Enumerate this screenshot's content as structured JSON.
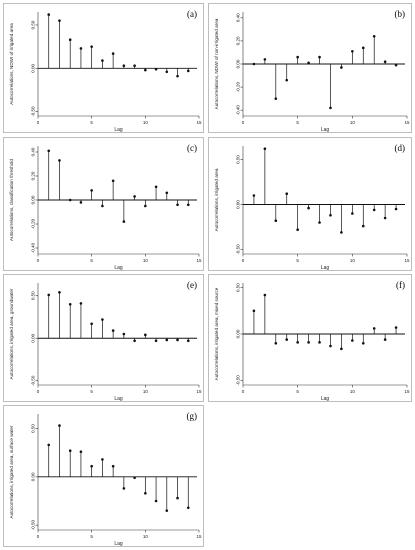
{
  "figure": {
    "panels": [
      {
        "panel_label": "(a)"
      },
      {
        "panel_label": "(b)"
      },
      {
        "panel_label": "(c)"
      },
      {
        "panel_label": "(d)"
      },
      {
        "panel_label": "(e)"
      },
      {
        "panel_label": "(f)"
      },
      {
        "panel_label": "(g)"
      }
    ]
  },
  "chart_data": [
    {
      "type": "stem",
      "panel": "(a)",
      "xlabel": "Lag",
      "ylabel": "Autocorrelations, NDWI of irrigated area",
      "xlim": [
        0,
        15
      ],
      "x_ticks": [
        0,
        5,
        10,
        15
      ],
      "ylim": [
        -0.55,
        0.65
      ],
      "y_ticks": [
        -0.5,
        0.0,
        0.5
      ],
      "y_tick_labels": [
        "-0.50",
        "0.00",
        "0.50"
      ],
      "x": [
        1,
        2,
        3,
        4,
        5,
        6,
        7,
        8,
        9,
        10,
        11,
        12,
        13,
        14
      ],
      "values": [
        0.62,
        0.55,
        0.33,
        0.23,
        0.25,
        0.09,
        0.17,
        0.03,
        0.03,
        -0.02,
        -0.01,
        -0.04,
        -0.09,
        -0.03
      ]
    },
    {
      "type": "stem",
      "panel": "(b)",
      "xlabel": "Lag",
      "ylabel": "Autocorrelations, NDWI of non-irrigated area",
      "xlim": [
        0,
        15
      ],
      "x_ticks": [
        0,
        5,
        10,
        15
      ],
      "ylim": [
        -0.45,
        0.45
      ],
      "y_ticks": [
        -0.4,
        -0.2,
        0.0,
        0.2,
        0.4
      ],
      "y_tick_labels": [
        "-0.40",
        "-0.20",
        "0.00",
        "0.20",
        "0.40"
      ],
      "x": [
        1,
        2,
        3,
        4,
        5,
        6,
        7,
        8,
        9,
        10,
        11,
        12,
        13,
        14
      ],
      "values": [
        0.0,
        0.04,
        -0.3,
        -0.14,
        0.06,
        0.01,
        0.06,
        -0.38,
        -0.03,
        0.11,
        0.14,
        0.24,
        0.02,
        -0.01
      ]
    },
    {
      "type": "stem",
      "panel": "(c)",
      "xlabel": "Lag",
      "ylabel": "Autocorrelations, classification threshold",
      "xlim": [
        0,
        15
      ],
      "x_ticks": [
        0,
        5,
        10,
        15
      ],
      "ylim": [
        -0.45,
        0.45
      ],
      "y_ticks": [
        -0.4,
        -0.2,
        0.0,
        0.2,
        0.4
      ],
      "y_tick_labels": [
        "-0.40",
        "-0.20",
        "0.00",
        "0.20",
        "0.40"
      ],
      "x": [
        1,
        2,
        3,
        4,
        5,
        6,
        7,
        8,
        9,
        10,
        11,
        12,
        13,
        14
      ],
      "values": [
        0.41,
        0.33,
        0.0,
        -0.02,
        0.08,
        -0.05,
        0.16,
        -0.18,
        0.03,
        -0.05,
        0.11,
        0.06,
        -0.04,
        -0.04
      ]
    },
    {
      "type": "stem",
      "panel": "(d)",
      "xlabel": "Lag",
      "ylabel": "Autocorrelations, irrigated area",
      "xlim": [
        0,
        15
      ],
      "x_ticks": [
        0,
        5,
        10,
        15
      ],
      "ylim": [
        -0.55,
        0.65
      ],
      "y_ticks": [
        -0.5,
        0.0,
        0.5
      ],
      "y_tick_labels": [
        "-0.50",
        "0.00",
        "0.50"
      ],
      "x": [
        1,
        2,
        3,
        4,
        5,
        6,
        7,
        8,
        9,
        10,
        11,
        12,
        13,
        14
      ],
      "values": [
        0.1,
        0.62,
        -0.18,
        0.12,
        -0.28,
        -0.04,
        -0.2,
        -0.12,
        -0.31,
        -0.1,
        -0.24,
        -0.06,
        -0.15,
        -0.05
      ]
    },
    {
      "type": "stem",
      "panel": "(e)",
      "xlabel": "Lag",
      "ylabel": "Autocorrelations, irrigated area, groundwater",
      "xlim": [
        0,
        15
      ],
      "x_ticks": [
        0,
        5,
        10,
        15
      ],
      "ylim": [
        -0.55,
        0.65
      ],
      "y_ticks": [
        -0.5,
        0.0,
        0.5
      ],
      "y_tick_labels": [
        "-0.50",
        "0.00",
        "0.50"
      ],
      "x": [
        1,
        2,
        3,
        4,
        5,
        6,
        7,
        8,
        9,
        10,
        11,
        12,
        13,
        14
      ],
      "values": [
        0.51,
        0.54,
        0.4,
        0.41,
        0.17,
        0.22,
        0.09,
        0.05,
        -0.03,
        0.04,
        -0.03,
        -0.02,
        -0.02,
        -0.03
      ]
    },
    {
      "type": "stem",
      "panel": "(f)",
      "xlabel": "Lag",
      "ylabel": "Autocorrelations, irrigated area, mixed source",
      "xlim": [
        0,
        15
      ],
      "x_ticks": [
        0,
        5,
        10,
        15
      ],
      "ylim": [
        -0.55,
        0.55
      ],
      "y_ticks": [
        -0.5,
        0.0,
        0.5
      ],
      "y_tick_labels": [
        "-0.50",
        "0.00",
        "0.50"
      ],
      "x": [
        1,
        2,
        3,
        4,
        5,
        6,
        7,
        8,
        9,
        10,
        11,
        12,
        13,
        14
      ],
      "values": [
        0.25,
        0.42,
        -0.1,
        -0.06,
        -0.09,
        -0.09,
        -0.09,
        -0.13,
        -0.16,
        -0.07,
        -0.1,
        0.06,
        -0.06,
        0.07
      ]
    },
    {
      "type": "stem",
      "panel": "(g)",
      "xlabel": "Lag",
      "ylabel": "Autocorrelations, irrigated area, surface water",
      "xlim": [
        0,
        15
      ],
      "x_ticks": [
        0,
        5,
        10,
        15
      ],
      "ylim": [
        -0.55,
        0.65
      ],
      "y_ticks": [
        -0.5,
        0.0,
        0.5
      ],
      "y_tick_labels": [
        "-0.50",
        "0.00",
        "0.50"
      ],
      "x": [
        1,
        2,
        3,
        4,
        5,
        6,
        7,
        8,
        9,
        10,
        11,
        12,
        13,
        14
      ],
      "values": [
        0.33,
        0.53,
        0.27,
        0.26,
        0.11,
        0.18,
        0.11,
        -0.12,
        -0.01,
        -0.17,
        -0.25,
        -0.35,
        -0.22,
        -0.32
      ]
    }
  ]
}
